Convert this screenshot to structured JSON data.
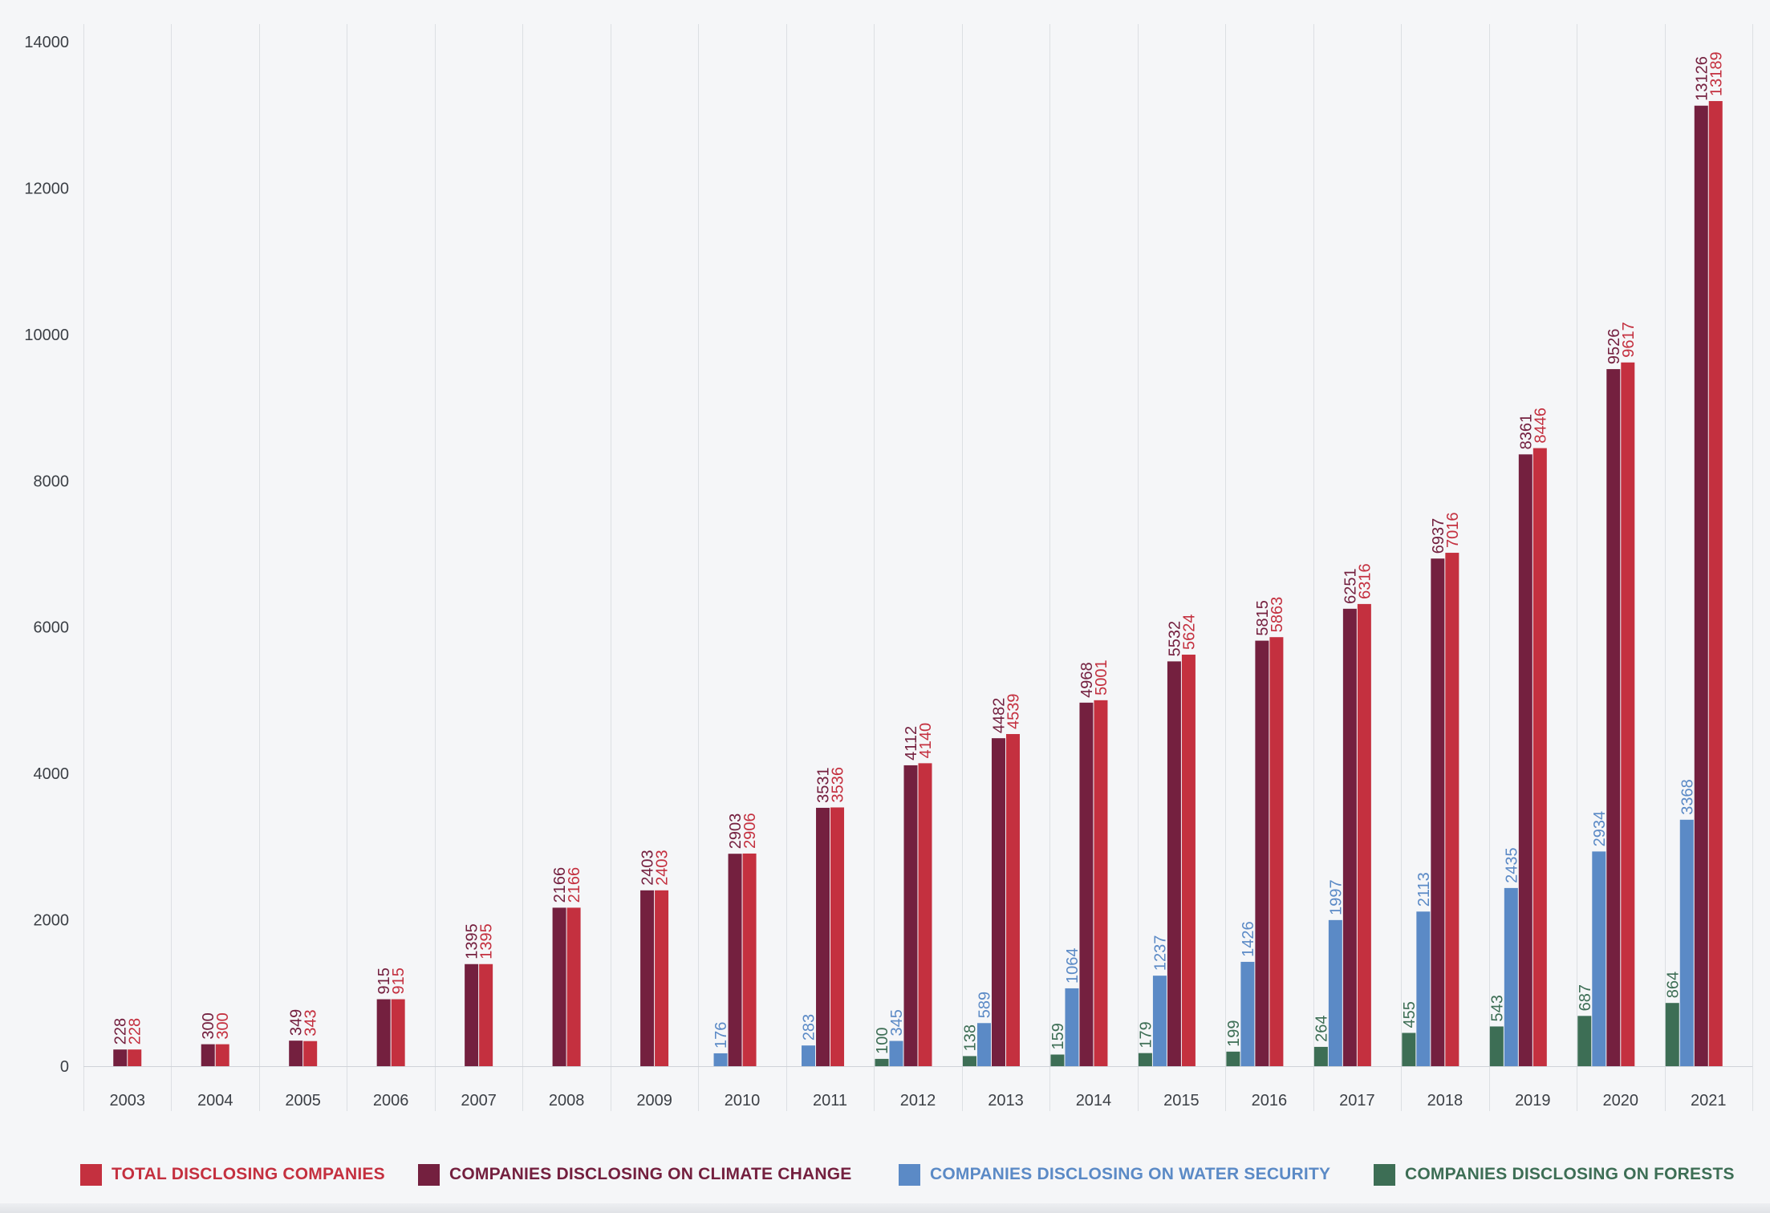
{
  "chart_data": {
    "type": "bar",
    "categories": [
      "2003",
      "2004",
      "2005",
      "2006",
      "2007",
      "2008",
      "2009",
      "2010",
      "2011",
      "2012",
      "2013",
      "2014",
      "2015",
      "2016",
      "2017",
      "2018",
      "2019",
      "2020",
      "2021"
    ],
    "ylim": [
      0,
      14000
    ],
    "yticks": [
      0,
      2000,
      4000,
      6000,
      8000,
      10000,
      12000,
      14000
    ],
    "grid": "vertical",
    "legend_position": "bottom",
    "series": [
      {
        "name": "COMPANIES DISCLOSING ON FORESTS",
        "color": "#3d6e55",
        "values": [
          null,
          null,
          null,
          null,
          null,
          null,
          null,
          null,
          null,
          100,
          138,
          159,
          179,
          199,
          264,
          455,
          543,
          687,
          864
        ]
      },
      {
        "name": "COMPANIES DISCLOSING ON WATER SECURITY",
        "color": "#5b8ac6",
        "values": [
          null,
          null,
          null,
          null,
          null,
          null,
          null,
          176,
          283,
          345,
          589,
          1064,
          1237,
          1426,
          1997,
          2113,
          2435,
          2934,
          3368
        ]
      },
      {
        "name": "COMPANIES DISCLOSING ON CLIMATE CHANGE",
        "color": "#74203f",
        "values": [
          228,
          300,
          349,
          915,
          1395,
          2166,
          2403,
          2903,
          3531,
          4112,
          4482,
          4968,
          5532,
          5815,
          6251,
          6937,
          8361,
          9526,
          13126
        ]
      },
      {
        "name": "TOTAL DISCLOSING COMPANIES",
        "color": "#c4303f",
        "values": [
          228,
          300,
          343,
          915,
          1395,
          2166,
          2403,
          2906,
          3536,
          4140,
          4539,
          5001,
          5624,
          5863,
          6316,
          7016,
          8446,
          9617,
          13189
        ]
      }
    ]
  },
  "legend": [
    {
      "label": "TOTAL DISCLOSING COMPANIES",
      "color": "#c4303f"
    },
    {
      "label": "COMPANIES DISCLOSING ON CLIMATE CHANGE",
      "color": "#74203f"
    },
    {
      "label": "COMPANIES DISCLOSING ON WATER SECURITY",
      "color": "#5b8ac6"
    },
    {
      "label": "COMPANIES DISCLOSING ON FORESTS",
      "color": "#3d6e55"
    }
  ]
}
